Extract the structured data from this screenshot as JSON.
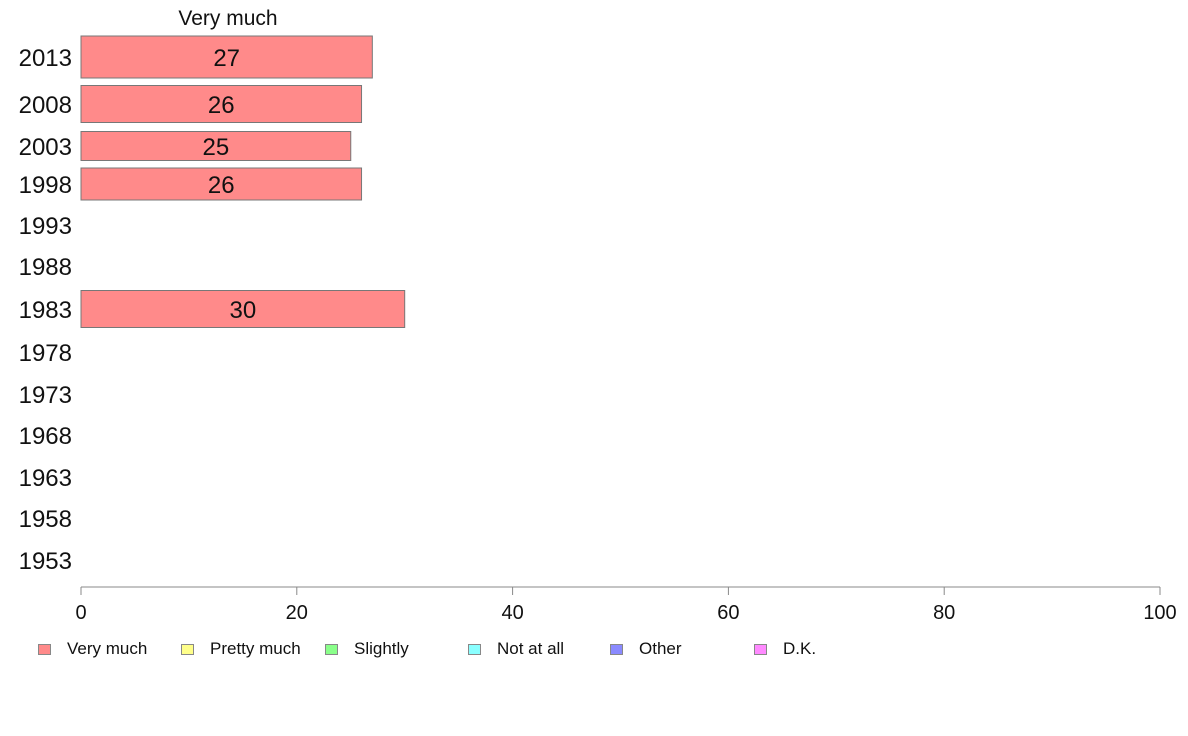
{
  "chart_data": {
    "type": "bar",
    "orientation": "horizontal",
    "title": "Very much",
    "categories": [
      "2013",
      "2008",
      "2003",
      "1998",
      "1993",
      "1988",
      "1983",
      "1978",
      "1973",
      "1968",
      "1963",
      "1958",
      "1953"
    ],
    "series": [
      {
        "name": "Very much",
        "color": "#ff8a8a",
        "values": [
          27,
          26,
          25,
          26,
          null,
          null,
          30,
          null,
          null,
          null,
          null,
          null,
          null
        ]
      }
    ],
    "xlim": [
      0,
      100
    ],
    "xticks": [
      0,
      20,
      40,
      60,
      80,
      100
    ],
    "legend_position": "bottom",
    "legend": [
      {
        "label": "Very much",
        "color": "#ff8a8a"
      },
      {
        "label": "Pretty much",
        "color": "#ffff8a"
      },
      {
        "label": "Slightly",
        "color": "#8aff8a"
      },
      {
        "label": "Not at all",
        "color": "#8affff"
      },
      {
        "label": "Other",
        "color": "#8a8aff"
      },
      {
        "label": "D.K.",
        "color": "#ff8aff"
      }
    ]
  }
}
